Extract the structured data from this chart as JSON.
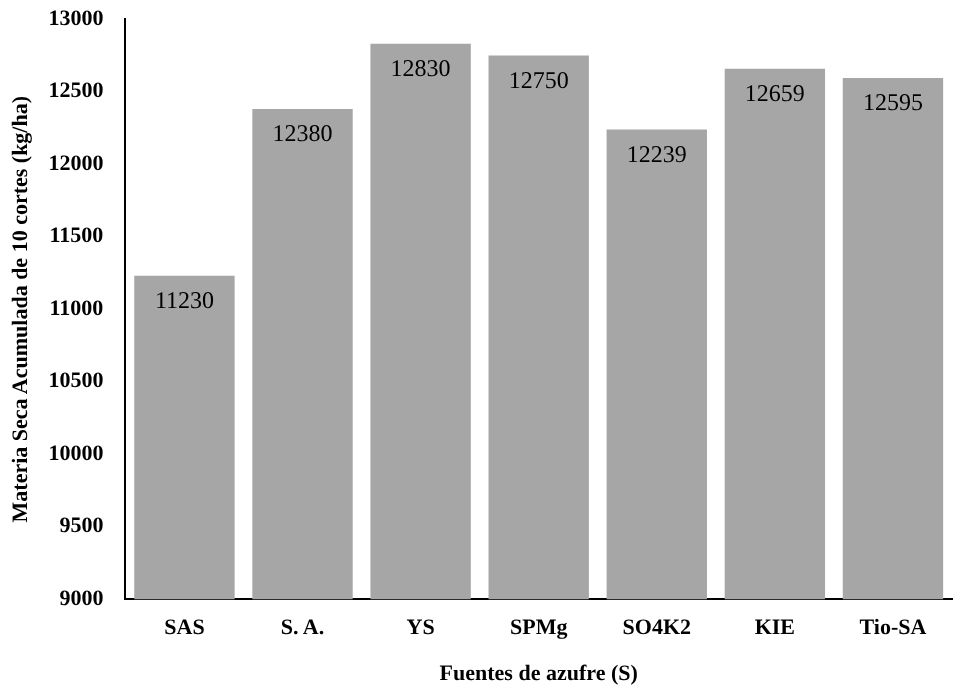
{
  "chart_data": {
    "type": "bar",
    "xlabel": "Fuentes de azufre (S)",
    "ylabel": "Materia Seca Acumulada de 10 cortes (kg/ha)",
    "categories": [
      "SAS",
      "S. A.",
      "YS",
      "SPMg",
      "SO4K2",
      "KIE",
      "Tio-SA"
    ],
    "values": [
      11230,
      12380,
      12830,
      12750,
      12239,
      12659,
      12595
    ],
    "color": "#a6a6a6",
    "ylim": [
      9000,
      13000
    ],
    "yticks": [
      9000,
      9500,
      10000,
      10500,
      11000,
      11500,
      12000,
      12500,
      13000
    ],
    "grid": false,
    "data_labels": true
  }
}
